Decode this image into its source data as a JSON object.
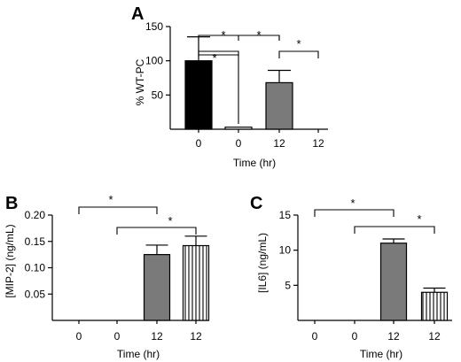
{
  "chart_data": [
    {
      "panel": "A",
      "type": "bar",
      "categories": [
        "0",
        "0",
        "12",
        "12"
      ],
      "values": [
        100,
        3,
        68,
        0
      ],
      "errors": [
        35,
        0,
        18,
        0
      ],
      "fills": [
        "black",
        "white",
        "gray",
        "white"
      ],
      "ylabel": "% WT-PC",
      "xlabel": "Time (hr)",
      "ylim": [
        0,
        150
      ],
      "yticks": [
        "50",
        "100",
        "150"
      ],
      "significance": [
        {
          "from": 0,
          "to": 1,
          "label": "*"
        },
        {
          "from": 0,
          "to": 2,
          "label": "*"
        },
        {
          "from": 1,
          "to": 2,
          "label": "*"
        },
        {
          "from": 2,
          "to": 3,
          "label": "*"
        }
      ]
    },
    {
      "panel": "B",
      "type": "bar",
      "categories": [
        "0",
        "0",
        "12",
        "12"
      ],
      "values": [
        0,
        0,
        0.125,
        0.142
      ],
      "errors": [
        0,
        0,
        0.018,
        0.018
      ],
      "fills": [
        "white",
        "white",
        "gray",
        "vstripes"
      ],
      "ylabel": "[MIP-2] (ng/mL)",
      "xlabel": "Time (hr)",
      "ylim": [
        0,
        0.2
      ],
      "yticks": [
        "0.05",
        "0.10",
        "0.15",
        "0.20"
      ],
      "significance": [
        {
          "from": 0,
          "to": 2,
          "label": "*"
        },
        {
          "from": 1,
          "to": 3,
          "label": "*"
        }
      ]
    },
    {
      "panel": "C",
      "type": "bar",
      "categories": [
        "0",
        "0",
        "12",
        "12"
      ],
      "values": [
        0,
        0,
        11.0,
        4.0
      ],
      "errors": [
        0,
        0,
        0.6,
        0.6
      ],
      "fills": [
        "white",
        "white",
        "gray",
        "vstripes"
      ],
      "ylabel": "[IL6] (ng/mL)",
      "xlabel": "Time (hr)",
      "ylim": [
        0,
        15
      ],
      "yticks": [
        "5",
        "10",
        "15"
      ],
      "significance": [
        {
          "from": 0,
          "to": 2,
          "label": "*"
        },
        {
          "from": 1,
          "to": 3,
          "label": "*"
        }
      ]
    }
  ]
}
